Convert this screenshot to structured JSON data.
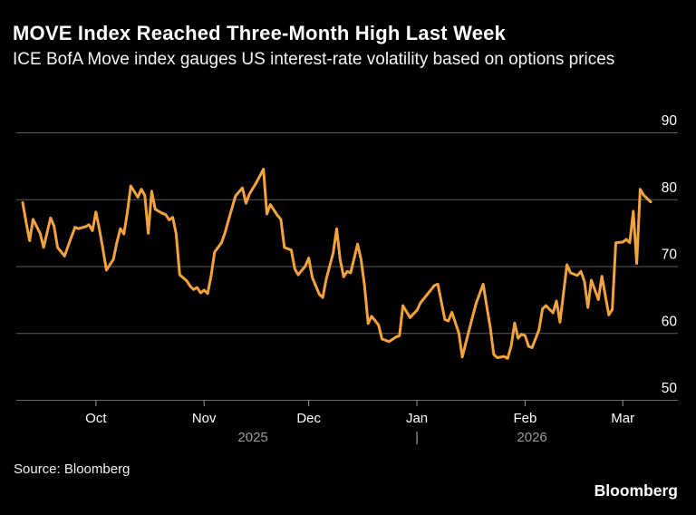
{
  "header": {
    "title": "MOVE Index Reached Three-Month High Last Week",
    "subtitle": "ICE BofA Move index gauges US interest-rate volatility based on options prices"
  },
  "footer": {
    "source": "Source: Bloomberg",
    "logo": "Bloomberg"
  },
  "chart_data": {
    "type": "line",
    "title": "MOVE Index Reached Three-Month High Last Week",
    "subtitle": "ICE BofA Move index gauges US interest-rate volatility based on options prices",
    "xlabel": "",
    "ylabel": "",
    "ylim": [
      50,
      90
    ],
    "yticks": [
      90,
      80,
      70,
      60,
      50
    ],
    "grid": "horizontal",
    "legend_position": "none",
    "colors": {
      "line": "#F2A33C",
      "grid": "#5E5E5E",
      "axis": "#6A6A6A",
      "tick_label": "#FFFFFF",
      "year_label": "#9A9A9A",
      "background": "#000000"
    },
    "x_range": {
      "start": "2025-09-10",
      "end": "2026-03-09"
    },
    "xticks": [
      {
        "label": "Oct",
        "date": "2025-10-01"
      },
      {
        "label": "Nov",
        "date": "2025-11-01"
      },
      {
        "label": "Dec",
        "date": "2025-12-01"
      },
      {
        "label": "Jan",
        "date": "2026-01-01"
      },
      {
        "label": "Feb",
        "date": "2026-02-01"
      },
      {
        "label": "Mar",
        "date": "2026-03-01"
      }
    ],
    "year_markers": [
      {
        "label": "2025",
        "date": "2025-11-15"
      },
      {
        "label": "|",
        "date": "2026-01-01"
      },
      {
        "label": "2026",
        "date": "2026-02-03"
      }
    ],
    "series": [
      {
        "name": "ICE BofA MOVE Index",
        "points": [
          [
            "2025-09-10",
            79.5
          ],
          [
            "2025-09-11",
            76.5
          ],
          [
            "2025-09-12",
            73.8
          ],
          [
            "2025-09-13",
            77.0
          ],
          [
            "2025-09-15",
            74.9
          ],
          [
            "2025-09-16",
            72.8
          ],
          [
            "2025-09-18",
            77.2
          ],
          [
            "2025-09-19",
            76.0
          ],
          [
            "2025-09-20",
            72.8
          ],
          [
            "2025-09-22",
            71.5
          ],
          [
            "2025-09-24",
            74.4
          ],
          [
            "2025-09-25",
            75.8
          ],
          [
            "2025-09-26",
            75.6
          ],
          [
            "2025-09-28",
            75.9
          ],
          [
            "2025-09-29",
            76.2
          ],
          [
            "2025-09-30",
            75.3
          ],
          [
            "2025-10-01",
            78.1
          ],
          [
            "2025-10-02",
            75.5
          ],
          [
            "2025-10-03",
            72.6
          ],
          [
            "2025-10-04",
            69.4
          ],
          [
            "2025-10-06",
            71.0
          ],
          [
            "2025-10-07",
            73.5
          ],
          [
            "2025-10-08",
            75.6
          ],
          [
            "2025-10-09",
            74.8
          ],
          [
            "2025-10-10",
            78.0
          ],
          [
            "2025-10-11",
            82.0
          ],
          [
            "2025-10-13",
            80.3
          ],
          [
            "2025-10-14",
            81.5
          ],
          [
            "2025-10-15",
            80.6
          ],
          [
            "2025-10-16",
            74.9
          ],
          [
            "2025-10-17",
            81.2
          ],
          [
            "2025-10-18",
            78.5
          ],
          [
            "2025-10-20",
            77.9
          ],
          [
            "2025-10-21",
            77.7
          ],
          [
            "2025-10-22",
            76.9
          ],
          [
            "2025-10-23",
            77.3
          ],
          [
            "2025-10-24",
            74.8
          ],
          [
            "2025-10-25",
            68.7
          ],
          [
            "2025-10-27",
            67.8
          ],
          [
            "2025-10-28",
            67.0
          ],
          [
            "2025-10-29",
            66.5
          ],
          [
            "2025-10-30",
            66.8
          ],
          [
            "2025-10-31",
            66.0
          ],
          [
            "2025-11-01",
            66.4
          ],
          [
            "2025-11-02",
            65.9
          ],
          [
            "2025-11-03",
            68.5
          ],
          [
            "2025-11-04",
            72.1
          ],
          [
            "2025-11-06",
            73.5
          ],
          [
            "2025-11-07",
            75.0
          ],
          [
            "2025-11-08",
            76.9
          ],
          [
            "2025-11-10",
            80.5
          ],
          [
            "2025-11-12",
            81.7
          ],
          [
            "2025-11-13",
            79.4
          ],
          [
            "2025-11-14",
            80.8
          ],
          [
            "2025-11-16",
            82.5
          ],
          [
            "2025-11-18",
            84.5
          ],
          [
            "2025-11-19",
            77.8
          ],
          [
            "2025-11-20",
            79.2
          ],
          [
            "2025-11-22",
            77.6
          ],
          [
            "2025-11-23",
            77.0
          ],
          [
            "2025-11-24",
            72.8
          ],
          [
            "2025-11-26",
            72.4
          ],
          [
            "2025-11-27",
            69.6
          ],
          [
            "2025-11-28",
            68.7
          ],
          [
            "2025-11-30",
            70.0
          ],
          [
            "2025-12-01",
            71.2
          ],
          [
            "2025-12-02",
            68.3
          ],
          [
            "2025-12-04",
            65.8
          ],
          [
            "2025-12-05",
            65.3
          ],
          [
            "2025-12-06",
            68.0
          ],
          [
            "2025-12-08",
            72.0
          ],
          [
            "2025-12-09",
            75.6
          ],
          [
            "2025-12-10",
            71.0
          ],
          [
            "2025-12-11",
            68.4
          ],
          [
            "2025-12-12",
            69.2
          ],
          [
            "2025-12-13",
            69.0
          ],
          [
            "2025-12-15",
            73.3
          ],
          [
            "2025-12-16",
            71.0
          ],
          [
            "2025-12-17",
            67.0
          ],
          [
            "2025-12-18",
            61.4
          ],
          [
            "2025-12-19",
            62.5
          ],
          [
            "2025-12-21",
            61.2
          ],
          [
            "2025-12-22",
            59.1
          ],
          [
            "2025-12-24",
            58.7
          ],
          [
            "2025-12-26",
            59.4
          ],
          [
            "2025-12-27",
            59.6
          ],
          [
            "2025-12-28",
            64.1
          ],
          [
            "2025-12-29",
            63.2
          ],
          [
            "2025-12-30",
            62.3
          ],
          [
            "2026-01-01",
            63.4
          ],
          [
            "2026-01-02",
            64.5
          ],
          [
            "2026-01-04",
            65.8
          ],
          [
            "2026-01-06",
            67.1
          ],
          [
            "2026-01-07",
            67.3
          ],
          [
            "2026-01-09",
            62.0
          ],
          [
            "2026-01-10",
            61.8
          ],
          [
            "2026-01-11",
            63.1
          ],
          [
            "2026-01-13",
            60.0
          ],
          [
            "2026-01-14",
            56.4
          ],
          [
            "2026-01-15",
            58.5
          ],
          [
            "2026-01-17",
            62.5
          ],
          [
            "2026-01-18",
            64.5
          ],
          [
            "2026-01-20",
            67.3
          ],
          [
            "2026-01-21",
            64.0
          ],
          [
            "2026-01-22",
            60.9
          ],
          [
            "2026-01-23",
            56.8
          ],
          [
            "2026-01-24",
            56.3
          ],
          [
            "2026-01-26",
            56.5
          ],
          [
            "2026-01-27",
            56.2
          ],
          [
            "2026-01-28",
            58.0
          ],
          [
            "2026-01-29",
            61.5
          ],
          [
            "2026-01-30",
            59.2
          ],
          [
            "2026-01-31",
            59.8
          ],
          [
            "2026-02-01",
            59.6
          ],
          [
            "2026-02-02",
            58.0
          ],
          [
            "2026-02-03",
            57.8
          ],
          [
            "2026-02-05",
            60.5
          ],
          [
            "2026-02-06",
            63.6
          ],
          [
            "2026-02-07",
            64.1
          ],
          [
            "2026-02-09",
            63.0
          ],
          [
            "2026-02-10",
            64.8
          ],
          [
            "2026-02-11",
            61.6
          ],
          [
            "2026-02-13",
            70.2
          ],
          [
            "2026-02-14",
            69.0
          ],
          [
            "2026-02-16",
            68.6
          ],
          [
            "2026-02-17",
            69.2
          ],
          [
            "2026-02-18",
            67.7
          ],
          [
            "2026-02-19",
            63.8
          ],
          [
            "2026-02-20",
            67.9
          ],
          [
            "2026-02-22",
            65.0
          ],
          [
            "2026-02-23",
            68.5
          ],
          [
            "2026-02-25",
            62.7
          ],
          [
            "2026-02-26",
            63.5
          ],
          [
            "2026-02-27",
            73.5
          ],
          [
            "2026-03-01",
            73.6
          ],
          [
            "2026-03-02",
            74.0
          ],
          [
            "2026-03-03",
            73.5
          ],
          [
            "2026-03-04",
            78.2
          ],
          [
            "2026-03-05",
            70.4
          ],
          [
            "2026-03-06",
            81.5
          ],
          [
            "2026-03-07",
            80.6
          ],
          [
            "2026-03-09",
            79.6
          ]
        ]
      }
    ]
  }
}
